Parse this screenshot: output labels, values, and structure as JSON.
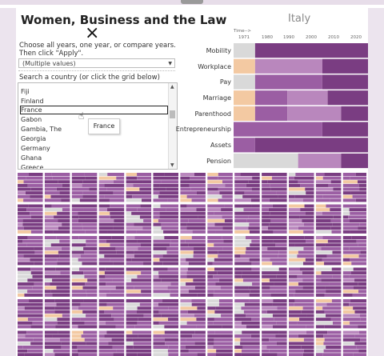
{
  "panel": {
    "title": "Women, Business and the Law",
    "close_icon": "close-icon",
    "instructions_line1": "Choose all years, one year, or compare years.",
    "instructions_line2": "Then click \"Apply\".",
    "years_select_value": "(Multiple values)",
    "search_label": "Search a country (or click the grid below)",
    "countries": [
      "Fiji",
      "Finland",
      "France",
      "Gabon",
      "Gambia, The",
      "Georgia",
      "Germany",
      "Ghana",
      "Greece"
    ],
    "selected_country": "France",
    "tooltip": "France"
  },
  "detail": {
    "country": "Italy",
    "time_label": "Time-->",
    "years": [
      "1971",
      "1980",
      "1990",
      "2000",
      "2010",
      "2020"
    ],
    "indicators": [
      "Mobility",
      "Workplace",
      "Pay",
      "Marriage",
      "Parenthood",
      "Entrepreneurship",
      "Assets",
      "Pension"
    ]
  },
  "colors": {
    "frame": "#8f4a97",
    "dark_purple": "#7a3d82",
    "mid_purple": "#9b5ea3",
    "light_purple": "#b987bd",
    "grey": "#d9d9d9",
    "orange": "#f3c9a2",
    "separator": "#ffffff"
  }
}
